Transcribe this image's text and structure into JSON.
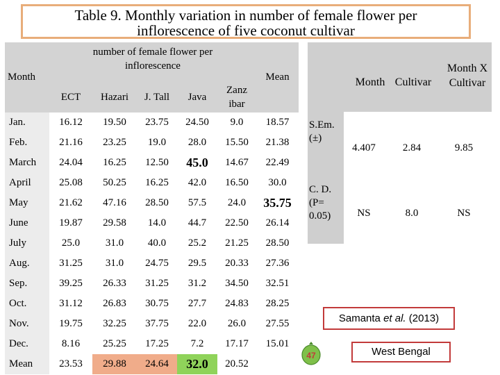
{
  "title": {
    "line1": "Table 9. Monthly variation in number of female flower per",
    "line2": "inflorescence of five coconut cultivar"
  },
  "table": {
    "month_header": "Month",
    "group_header": "number of female flower per inflorescence",
    "mean_header": "Mean",
    "columns": [
      "ECT",
      "Hazari",
      "J. Tall",
      "Java",
      "Zanz ibar"
    ],
    "rows": [
      {
        "month": "Jan.",
        "values": [
          "16.12",
          "19.50",
          "23.75",
          "24.50",
          "9.0",
          "18.57"
        ]
      },
      {
        "month": "Feb.",
        "values": [
          "21.16",
          "23.25",
          "19.0",
          "28.0",
          "15.50",
          "21.38"
        ]
      },
      {
        "month": "March",
        "values": [
          "24.04",
          "16.25",
          "12.50",
          "45.0",
          "14.67",
          "22.49"
        ]
      },
      {
        "month": "April",
        "values": [
          "25.08",
          "50.25",
          "16.25",
          "42.0",
          "16.50",
          "30.0"
        ]
      },
      {
        "month": "May",
        "values": [
          "21.62",
          "47.16",
          "28.50",
          "57.5",
          "24.0",
          "35.75"
        ]
      },
      {
        "month": "June",
        "values": [
          "19.87",
          "29.58",
          "14.0",
          "44.7",
          "22.50",
          "26.14"
        ]
      },
      {
        "month": "July",
        "values": [
          "25.0",
          "31.0",
          "40.0",
          "25.2",
          "21.25",
          "28.50"
        ]
      },
      {
        "month": "Aug.",
        "values": [
          "31.25",
          "31.0",
          "24.75",
          "29.5",
          "20.33",
          "27.36"
        ]
      },
      {
        "month": "Sep.",
        "values": [
          "39.25",
          "26.33",
          "31.25",
          "31.2",
          "34.50",
          "32.51"
        ]
      },
      {
        "month": "Oct.",
        "values": [
          "31.12",
          "26.83",
          "30.75",
          "27.7",
          "24.83",
          "28.25"
        ]
      },
      {
        "month": "Nov.",
        "values": [
          "19.75",
          "32.25",
          "37.75",
          "22.0",
          "26.0",
          "27.55"
        ]
      },
      {
        "month": "Dec.",
        "values": [
          "8.16",
          "25.25",
          "17.25",
          "7.2",
          "17.17",
          "15.01"
        ]
      },
      {
        "month": "Mean",
        "values": [
          "23.53",
          "29.88",
          "24.64",
          "32.0",
          "20.52",
          ""
        ]
      }
    ],
    "bold_cells": [
      "March-Java",
      "May-Mean",
      "Mean-Java"
    ]
  },
  "stats": {
    "headers": {
      "month": "Month",
      "cultivar": "Cultivar",
      "interaction": "Month X Cultivar"
    },
    "sem": {
      "label": "S.Em. (±)",
      "month": "4.407",
      "cultivar": "2.84",
      "interaction": "9.85"
    },
    "cd": {
      "label": "C. D. (P= 0.05)",
      "month": "NS",
      "cultivar": "8.0",
      "interaction": "NS"
    }
  },
  "citation": {
    "author": "Samanta",
    "etal": "et al.",
    "year": "(2013)"
  },
  "region": "West Bengal",
  "badge_number": "47",
  "colors": {
    "title_border": "#e8ad7a",
    "citation_border": "#c23a3a",
    "header_shade": "#d3d3d3",
    "badge_green": "#7fc04a"
  }
}
